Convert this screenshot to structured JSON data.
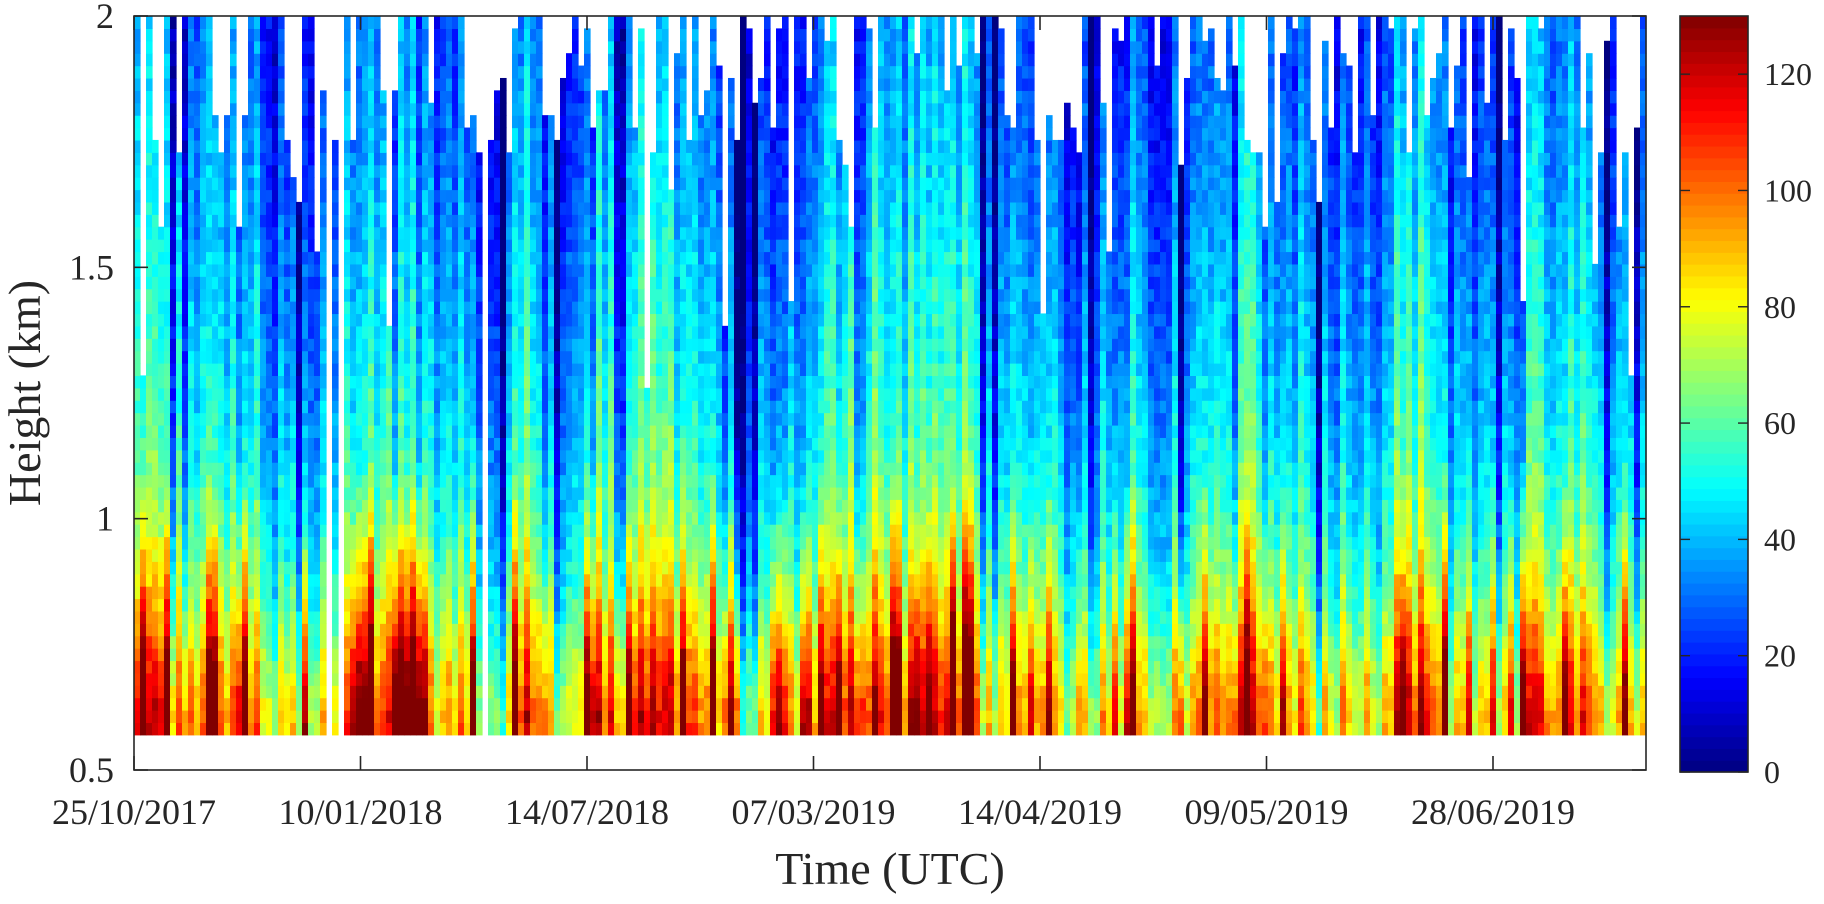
{
  "chart_data": {
    "type": "heatmap",
    "title": "",
    "xlabel": "Time (UTC)",
    "ylabel": "Height (km)",
    "x_tick_labels": [
      "25/10/2017",
      "10/01/2018",
      "14/07/2018",
      "07/03/2019",
      "14/04/2019",
      "09/05/2019",
      "28/06/2019"
    ],
    "y_ticks": [
      0.5,
      1,
      1.5,
      2
    ],
    "y_tick_labels": [
      "0.5",
      "1",
      "1.5",
      "2"
    ],
    "ylim": [
      0.5,
      2
    ],
    "data_height_range_km": [
      0.57,
      2
    ],
    "colorbar": {
      "range": [
        0,
        130
      ],
      "ticks": [
        0,
        20,
        40,
        60,
        80,
        100,
        120
      ],
      "tick_labels": [
        "0",
        "20",
        "40",
        "60",
        "80",
        "100",
        "120"
      ],
      "colormap": "jet"
    },
    "value_profile_description": {
      "height_km": [
        0.6,
        0.7,
        0.8,
        0.9,
        1.0,
        1.1,
        1.2,
        1.3,
        1.4,
        1.5,
        1.6,
        1.7,
        1.8,
        1.9,
        2.0
      ],
      "typical_value": [
        95,
        85,
        72,
        62,
        55,
        50,
        46,
        43,
        40,
        38,
        35,
        33,
        31,
        29,
        28
      ]
    },
    "gaps": "white regions indicate missing data, mostly above 1.3 km",
    "grid": false,
    "legend": "colorbar-right"
  }
}
